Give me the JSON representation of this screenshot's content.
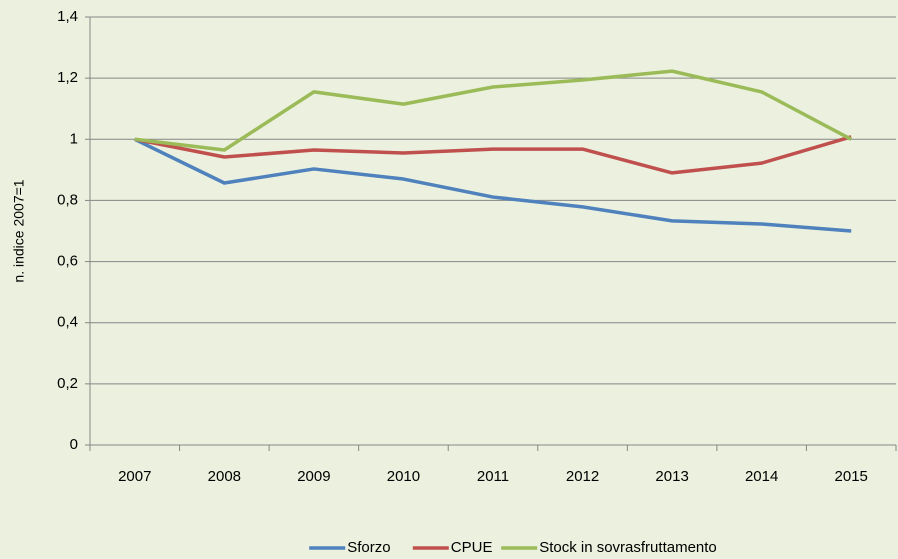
{
  "chart_data": {
    "type": "line",
    "y_label": "n. indice 2007=1",
    "categories": [
      "2007",
      "2008",
      "2009",
      "2010",
      "2011",
      "2012",
      "2013",
      "2014",
      "2015"
    ],
    "series": [
      {
        "name": "Sforzo",
        "color": "#4f81bd",
        "values": [
          1.0,
          0.857,
          0.903,
          0.87,
          0.811,
          0.779,
          0.733,
          0.723,
          0.7
        ]
      },
      {
        "name": "CPUE",
        "color": "#c0504d",
        "values": [
          1.0,
          0.942,
          0.965,
          0.955,
          0.968,
          0.968,
          0.89,
          0.922,
          1.008
        ]
      },
      {
        "name": "Stock in sovrasfruttamento",
        "color": "#9bbb59",
        "values": [
          1.0,
          0.965,
          1.155,
          1.115,
          1.171,
          1.194,
          1.223,
          1.155,
          1.0
        ]
      }
    ],
    "ylim": [
      0,
      1.4
    ],
    "yticks": [
      0,
      {
        "value": 0.2,
        "label": "0,2"
      },
      {
        "value": 0.4,
        "label": "0,4"
      },
      {
        "value": 0.6,
        "label": "0,6"
      },
      {
        "value": 0.8,
        "label": "0,8"
      },
      1,
      {
        "value": 1.2,
        "label": "1,2"
      },
      {
        "value": 1.4,
        "label": "1,4"
      }
    ],
    "grid": true,
    "legend": "bottom"
  }
}
